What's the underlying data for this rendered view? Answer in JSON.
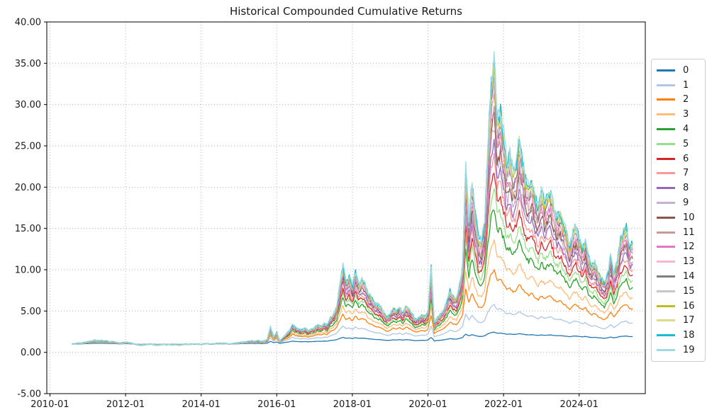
{
  "chart_data": {
    "type": "line",
    "title": "Historical Compounded Cumulative Returns",
    "xlabel": "",
    "ylabel": "",
    "ylim": [
      -5,
      40
    ],
    "ytick_step": 5,
    "ytick_format_decimals": 2,
    "xlim": [
      "2009-12",
      "2025-10"
    ],
    "xticks": [
      "2010-01",
      "2012-01",
      "2014-01",
      "2016-01",
      "2018-01",
      "2020-01",
      "2022-01",
      "2024-01"
    ],
    "grid": {
      "visible": true,
      "style": "dotted",
      "color": "#b5b5b5"
    },
    "legend_position": "right-outside",
    "x_start": "2010-08",
    "x_interval": "monthly",
    "series_model": "value = pow(envelope_value, exponent); envelope is series 19 (top envelope), estimated monthly from gridlines",
    "envelope_values": [
      1.0,
      1.05,
      1.12,
      1.1,
      1.2,
      1.28,
      1.35,
      1.5,
      1.4,
      1.45,
      1.38,
      1.42,
      1.25,
      1.32,
      1.2,
      1.12,
      1.15,
      1.22,
      1.18,
      1.1,
      1.0,
      0.9,
      0.85,
      0.92,
      0.95,
      1.0,
      0.92,
      0.85,
      0.9,
      0.98,
      0.92,
      0.96,
      0.88,
      0.95,
      0.85,
      0.92,
      0.98,
      0.94,
      1.0,
      1.02,
      0.98,
      0.95,
      1.02,
      1.05,
      1.0,
      1.03,
      1.08,
      1.06,
      1.1,
      1.05,
      1.0,
      1.08,
      1.12,
      1.15,
      1.22,
      1.25,
      1.35,
      1.4,
      1.32,
      1.45,
      1.3,
      1.4,
      1.55,
      3.1,
      1.9,
      2.4,
      1.35,
      1.8,
      2.2,
      2.6,
      3.4,
      3.0,
      2.8,
      2.7,
      2.9,
      2.6,
      2.8,
      3.0,
      3.3,
      3.1,
      3.5,
      3.3,
      4.2,
      4.6,
      5.5,
      8.0,
      10.7,
      8.5,
      9.2,
      8.0,
      9.9,
      8.3,
      8.8,
      8.5,
      7.2,
      6.7,
      6.0,
      5.8,
      5.5,
      4.8,
      4.3,
      4.6,
      5.3,
      5.0,
      5.5,
      4.8,
      5.6,
      5.2,
      4.6,
      4.0,
      4.2,
      4.5,
      4.3,
      5.0,
      10.4,
      3.6,
      4.2,
      4.6,
      5.2,
      6.2,
      7.5,
      6.8,
      6.5,
      8.0,
      10.5,
      23.0,
      16.0,
      21.0,
      17.0,
      14.0,
      13.5,
      16.0,
      25.0,
      32.5,
      35.7,
      28.5,
      29.5,
      26.5,
      23.0,
      24.0,
      22.0,
      23.0,
      26.0,
      23.5,
      21.0,
      20.0,
      21.0,
      19.0,
      17.5,
      19.8,
      18.0,
      19.0,
      19.7,
      17.5,
      16.5,
      17.0,
      15.5,
      14.5,
      12.8,
      14.8,
      15.2,
      13.9,
      12.5,
      13.8,
      11.5,
      10.5,
      11.0,
      9.8,
      9.0,
      8.4,
      9.5,
      11.8,
      9.4,
      11.0,
      13.5,
      14.5,
      15.2,
      13.0,
      13.2
    ],
    "series": [
      {
        "name": "0",
        "color": "#1f77b4",
        "exponent": 0.25
      },
      {
        "name": "1",
        "color": "#aec7e8",
        "exponent": 0.49
      },
      {
        "name": "2",
        "color": "#ff7f0e",
        "exponent": 0.645
      },
      {
        "name": "3",
        "color": "#ffbb78",
        "exponent": 0.73
      },
      {
        "name": "4",
        "color": "#2ca02c",
        "exponent": 0.8
      },
      {
        "name": "5",
        "color": "#98df8a",
        "exponent": 0.838
      },
      {
        "name": "6",
        "color": "#d62728",
        "exponent": 0.868
      },
      {
        "name": "7",
        "color": "#ff9896",
        "exponent": 0.893
      },
      {
        "name": "8",
        "color": "#9467bd",
        "exponent": 0.912
      },
      {
        "name": "9",
        "color": "#c5b0d5",
        "exponent": 0.928
      },
      {
        "name": "10",
        "color": "#8c564b",
        "exponent": 0.941
      },
      {
        "name": "11",
        "color": "#c49c94",
        "exponent": 0.952
      },
      {
        "name": "12",
        "color": "#e377c2",
        "exponent": 0.962
      },
      {
        "name": "13",
        "color": "#f7b6d2",
        "exponent": 0.97
      },
      {
        "name": "14",
        "color": "#7f7f7f",
        "exponent": 0.977
      },
      {
        "name": "15",
        "color": "#c7c7c7",
        "exponent": 0.983
      },
      {
        "name": "16",
        "color": "#bcbd22",
        "exponent": 0.988
      },
      {
        "name": "17",
        "color": "#dbdb8d",
        "exponent": 0.9925
      },
      {
        "name": "18",
        "color": "#17becf",
        "exponent": 0.9965
      },
      {
        "name": "19",
        "color": "#9edae5",
        "exponent": 1.0
      }
    ]
  }
}
